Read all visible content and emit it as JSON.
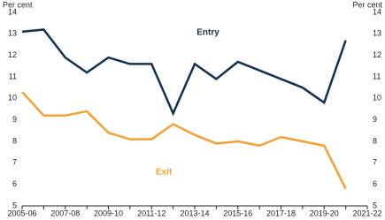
{
  "chart_data": {
    "type": "line",
    "y_label": "Per cent",
    "y2_label": "Per cent",
    "categories": [
      "2005-06",
      null,
      "2007-08",
      null,
      "2009-10",
      null,
      "2011-12",
      null,
      "2013-14",
      null,
      "2015-16",
      null,
      "2017-18",
      null,
      "2019-20",
      null,
      "2021-22"
    ],
    "series": [
      {
        "name": "Entry",
        "color": "#13304f",
        "values": [
          13.1,
          13.2,
          11.9,
          11.2,
          11.9,
          11.6,
          11.6,
          9.3,
          11.6,
          10.9,
          11.7,
          11.3,
          10.9,
          10.5,
          9.8,
          12.7,
          null
        ]
      },
      {
        "name": "Exit",
        "color": "#f5a033",
        "values": [
          10.3,
          9.2,
          9.2,
          9.4,
          8.4,
          8.1,
          8.1,
          8.8,
          8.3,
          7.9,
          8.0,
          7.8,
          8.2,
          8.0,
          7.8,
          5.8,
          null
        ]
      }
    ],
    "ylim": [
      5,
      14
    ],
    "yticks": [
      5,
      6,
      7,
      8,
      9,
      10,
      11,
      12,
      13,
      14
    ],
    "y2lim": [
      5,
      14
    ],
    "y2ticks": [
      5,
      6,
      7,
      8,
      9,
      10,
      11,
      12,
      13,
      14
    ],
    "grid": false
  }
}
